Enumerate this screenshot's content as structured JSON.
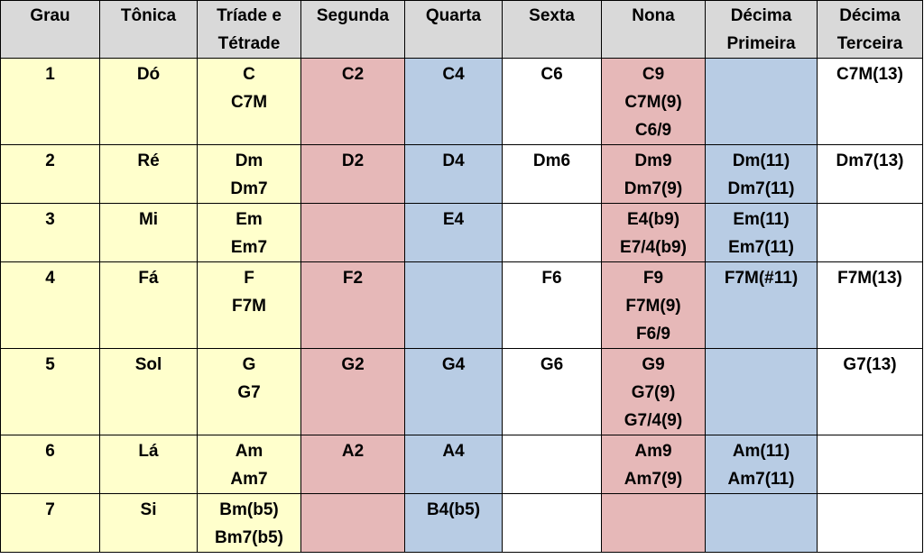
{
  "columns": [
    {
      "key": "grau",
      "label": [
        "Grau"
      ]
    },
    {
      "key": "tonica",
      "label": [
        "Tônica"
      ]
    },
    {
      "key": "triade",
      "label": [
        "Tríade e",
        "Tétrade"
      ]
    },
    {
      "key": "segunda",
      "label": [
        "Segunda"
      ]
    },
    {
      "key": "quarta",
      "label": [
        "Quarta"
      ]
    },
    {
      "key": "sexta",
      "label": [
        "Sexta"
      ]
    },
    {
      "key": "nona",
      "label": [
        "Nona"
      ]
    },
    {
      "key": "decima-primeira",
      "label": [
        "Décima",
        "Primeira"
      ]
    },
    {
      "key": "decima-terceira",
      "label": [
        "Décima",
        "Terceira"
      ]
    }
  ],
  "colors": {
    "header": "#d9d9d9",
    "degree_columns": "#ffffcc",
    "segunda_nona": "#e6b8b8",
    "quarta_decima_primeira": "#b8cce4",
    "sexta_decima_terceira": "#ffffff"
  },
  "rows": [
    [
      [
        "1"
      ],
      [
        "Dó"
      ],
      [
        "C",
        "C7M"
      ],
      [
        "C2"
      ],
      [
        "C4"
      ],
      [
        "C6"
      ],
      [
        "C9",
        "C7M(9)",
        "C6/9"
      ],
      [],
      [
        "C7M(13)"
      ]
    ],
    [
      [
        "2"
      ],
      [
        "Ré"
      ],
      [
        "Dm",
        "Dm7"
      ],
      [
        "D2"
      ],
      [
        "D4"
      ],
      [
        "Dm6"
      ],
      [
        "Dm9",
        "Dm7(9)"
      ],
      [
        "Dm(11)",
        "Dm7(11)"
      ],
      [
        "Dm7(13)"
      ]
    ],
    [
      [
        "3"
      ],
      [
        "Mi"
      ],
      [
        "Em",
        "Em7"
      ],
      [],
      [
        "E4"
      ],
      [],
      [
        "E4(b9)",
        "E7/4(b9)"
      ],
      [
        "Em(11)",
        "Em7(11)"
      ],
      []
    ],
    [
      [
        "4"
      ],
      [
        "Fá"
      ],
      [
        "F",
        "F7M"
      ],
      [
        "F2"
      ],
      [],
      [
        "F6"
      ],
      [
        "F9",
        "F7M(9)",
        "F6/9"
      ],
      [
        "F7M(#11)"
      ],
      [
        "F7M(13)"
      ]
    ],
    [
      [
        "5"
      ],
      [
        "Sol"
      ],
      [
        "G",
        "G7"
      ],
      [
        "G2"
      ],
      [
        "G4"
      ],
      [
        "G6"
      ],
      [
        "G9",
        "G7(9)",
        "G7/4(9)"
      ],
      [],
      [
        "G7(13)"
      ]
    ],
    [
      [
        "6"
      ],
      [
        "Lá"
      ],
      [
        "Am",
        "Am7"
      ],
      [
        "A2"
      ],
      [
        "A4"
      ],
      [],
      [
        "Am9",
        "Am7(9)"
      ],
      [
        "Am(11)",
        "Am7(11)"
      ],
      []
    ],
    [
      [
        "7"
      ],
      [
        "Si"
      ],
      [
        "Bm(b5)",
        "Bm7(b5)"
      ],
      [],
      [
        "B4(b5)"
      ],
      [],
      [],
      [],
      []
    ]
  ]
}
